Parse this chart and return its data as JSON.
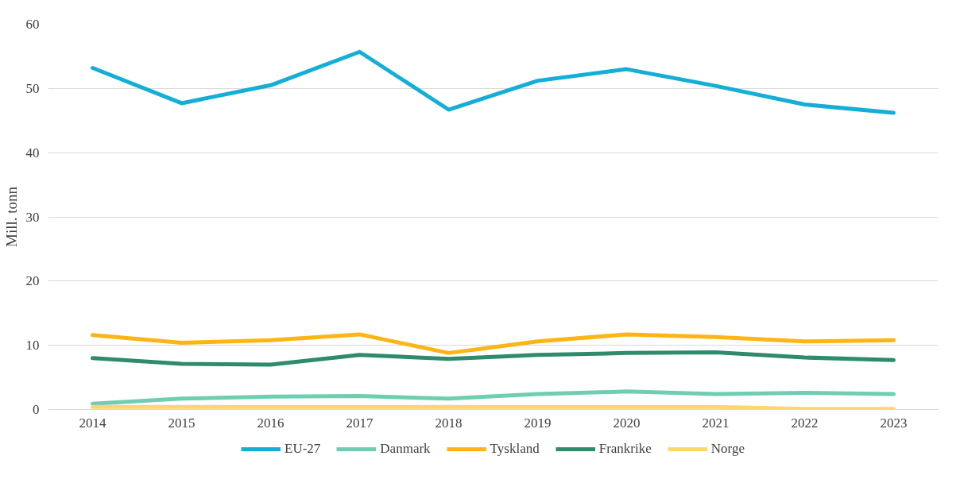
{
  "chart_data": {
    "type": "line",
    "ylabel": "Mill. tonn",
    "categories": [
      "2014",
      "2015",
      "2016",
      "2017",
      "2018",
      "2019",
      "2020",
      "2021",
      "2022",
      "2023"
    ],
    "series": [
      {
        "name": "EU-27",
        "color": "#14aed6",
        "values": [
          53.2,
          47.7,
          50.5,
          55.7,
          46.7,
          51.2,
          53.0,
          50.4,
          47.5,
          46.2
        ]
      },
      {
        "name": "Danmark",
        "color": "#6fceb2",
        "values": [
          0.9,
          1.7,
          2.0,
          2.1,
          1.7,
          2.4,
          2.8,
          2.4,
          2.6,
          2.4
        ]
      },
      {
        "name": "Tyskland",
        "color": "#fdb515",
        "values": [
          11.6,
          10.4,
          10.8,
          11.7,
          8.8,
          10.6,
          11.7,
          11.3,
          10.6,
          10.8
        ]
      },
      {
        "name": "Frankrike",
        "color": "#2e8b6c",
        "values": [
          8.0,
          7.1,
          7.0,
          8.5,
          7.9,
          8.5,
          8.8,
          8.9,
          8.1,
          7.7
        ]
      },
      {
        "name": "Norge",
        "color": "#ffd66e",
        "values": [
          0.4,
          0.4,
          0.4,
          0.4,
          0.4,
          0.4,
          0.4,
          0.4,
          0.1,
          0.1
        ]
      }
    ],
    "ylim": [
      0,
      60
    ],
    "yticks": [
      0,
      10,
      20,
      30,
      40,
      50,
      60
    ],
    "grid": "y",
    "legend": "bottom",
    "line_style": "solid",
    "marker": "none"
  }
}
